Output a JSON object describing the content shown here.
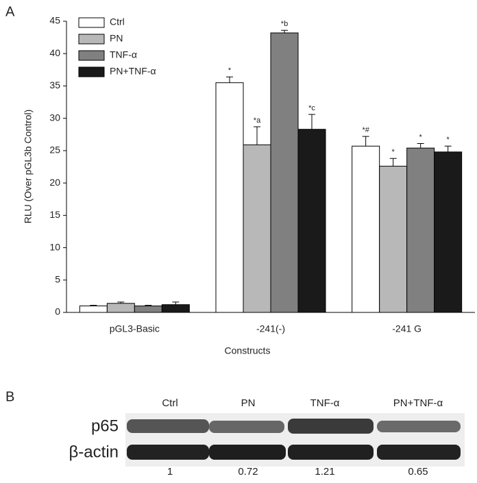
{
  "panels": [
    "A",
    "B"
  ],
  "chart_data": {
    "type": "bar",
    "ylabel": "RLU (Over pGL3b Control)",
    "xlabel": "Constructs",
    "categories": [
      "pGL3-Basic",
      "-241(-)",
      "-241 G"
    ],
    "series": [
      {
        "name": "Ctrl",
        "color": "#ffffff",
        "values": [
          1.0,
          35.5,
          25.7
        ],
        "errors": [
          0.1,
          0.9,
          1.5
        ],
        "annotations": [
          null,
          "*",
          "*#"
        ]
      },
      {
        "name": "PN",
        "color": "#b8b8b8",
        "values": [
          1.4,
          25.9,
          22.6
        ],
        "errors": [
          0.2,
          2.8,
          1.2
        ],
        "annotations": [
          null,
          "*a",
          "*"
        ]
      },
      {
        "name": "TNF-α",
        "color": "#808080",
        "values": [
          1.0,
          43.2,
          25.4
        ],
        "errors": [
          0.1,
          0.4,
          0.7
        ],
        "annotations": [
          null,
          "*b",
          "*"
        ]
      },
      {
        "name": "PN+TNF-α",
        "color": "#1a1a1a",
        "values": [
          1.2,
          28.3,
          24.8
        ],
        "errors": [
          0.4,
          2.3,
          0.9
        ],
        "annotations": [
          null,
          "*c",
          "*"
        ]
      }
    ],
    "ylim": [
      0,
      45
    ],
    "yticks": [
      0,
      5,
      10,
      15,
      20,
      25,
      30,
      35,
      40,
      45
    ],
    "legend": "upper-left"
  },
  "blot": {
    "lanes": [
      "Ctrl",
      "PN",
      "TNF-α",
      "PN+TNF-α"
    ],
    "rows": [
      "p65",
      "β-actin"
    ],
    "ratios": [
      "1",
      "0.72",
      "1.21",
      "0.65"
    ]
  }
}
